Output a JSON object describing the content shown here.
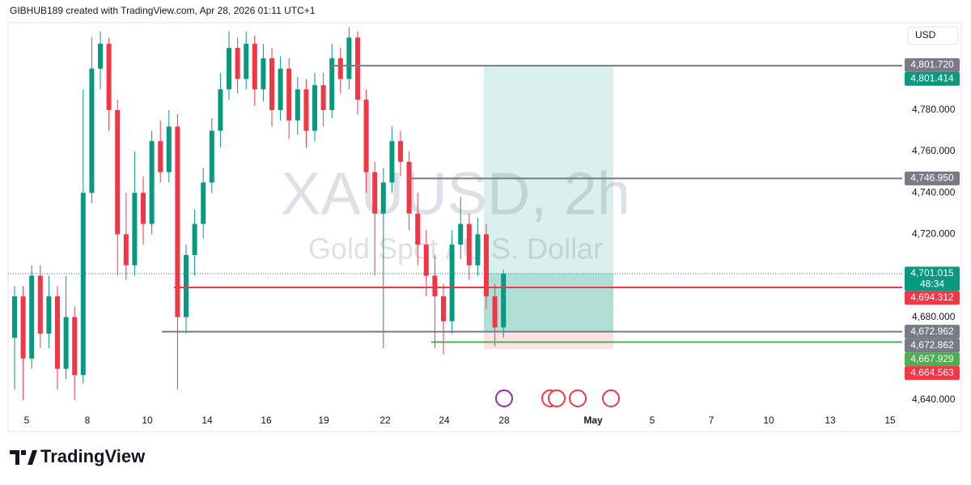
{
  "chart_data": {
    "type": "candlestick",
    "header": "GIBHUB189 created with TradingView.com, Apr 28, 2026 01:11 UTC+1",
    "watermark_symbol": "XAUUSD, 2h",
    "watermark_name": "Gold Spot / U.S. Dollar",
    "currency": "USD",
    "brand": "TradingView",
    "up_color": "#089981",
    "down_color": "#f23645",
    "ylim": [
      4633.7,
      4822.2
    ],
    "yticks": [
      {
        "value": 4640,
        "label": "4,640.000"
      },
      {
        "value": 4660,
        "label": "4,660.000"
      },
      {
        "value": 4680,
        "label": "4,680.000"
      },
      {
        "value": 4700,
        "label": "4,700.000"
      },
      {
        "value": 4720,
        "label": "4,720.000"
      },
      {
        "value": 4740,
        "label": "4,740.000"
      },
      {
        "value": 4760,
        "label": "4,760.000"
      },
      {
        "value": 4780,
        "label": "4,780.000"
      }
    ],
    "x_labels": [
      "5",
      "8",
      "10",
      "14",
      "16",
      "19",
      "22",
      "24",
      "28",
      "May",
      "5",
      "7",
      "10",
      "13",
      "15"
    ],
    "candles": [
      [
        4670,
        4695,
        4645,
        4690
      ],
      [
        4690,
        4695,
        4640,
        4660
      ],
      [
        4660,
        4705,
        4655,
        4700
      ],
      [
        4700,
        4705,
        4665,
        4672
      ],
      [
        4672,
        4700,
        4665,
        4690
      ],
      [
        4690,
        4695,
        4645,
        4655
      ],
      [
        4655,
        4700,
        4650,
        4680
      ],
      [
        4680,
        4685,
        4640,
        4652
      ],
      [
        4652,
        4790,
        4648,
        4740
      ],
      [
        4740,
        4815,
        4735,
        4800
      ],
      [
        4800,
        4818,
        4790,
        4812
      ],
      [
        4812,
        4815,
        4770,
        4780
      ],
      [
        4780,
        4785,
        4700,
        4720
      ],
      [
        4720,
        4740,
        4698,
        4705
      ],
      [
        4705,
        4760,
        4700,
        4740
      ],
      [
        4740,
        4748,
        4715,
        4725
      ],
      [
        4725,
        4770,
        4720,
        4765
      ],
      [
        4765,
        4775,
        4745,
        4750
      ],
      [
        4750,
        4780,
        4745,
        4772
      ],
      [
        4772,
        4778,
        4645,
        4680
      ],
      [
        4680,
        4715,
        4672,
        4710
      ],
      [
        4710,
        4732,
        4700,
        4725
      ],
      [
        4725,
        4752,
        4718,
        4745
      ],
      [
        4745,
        4776,
        4740,
        4770
      ],
      [
        4770,
        4798,
        4762,
        4790
      ],
      [
        4790,
        4818,
        4785,
        4810
      ],
      [
        4810,
        4815,
        4788,
        4795
      ],
      [
        4795,
        4818,
        4790,
        4812
      ],
      [
        4812,
        4816,
        4782,
        4790
      ],
      [
        4790,
        4812,
        4784,
        4805
      ],
      [
        4805,
        4810,
        4772,
        4780
      ],
      [
        4780,
        4806,
        4775,
        4800
      ],
      [
        4800,
        4805,
        4766,
        4775
      ],
      [
        4775,
        4796,
        4768,
        4790
      ],
      [
        4790,
        4795,
        4762,
        4770
      ],
      [
        4770,
        4798,
        4765,
        4792
      ],
      [
        4792,
        4798,
        4772,
        4780
      ],
      [
        4780,
        4812,
        4776,
        4805
      ],
      [
        4805,
        4810,
        4788,
        4795
      ],
      [
        4795,
        4820,
        4790,
        4815
      ],
      [
        4815,
        4818,
        4778,
        4785
      ],
      [
        4785,
        4790,
        4740,
        4750
      ],
      [
        4750,
        4755,
        4700,
        4730
      ],
      [
        4730,
        4752,
        4665,
        4745
      ],
      [
        4745,
        4772,
        4740,
        4765
      ],
      [
        4765,
        4770,
        4748,
        4755
      ],
      [
        4755,
        4760,
        4722,
        4730
      ],
      [
        4730,
        4740,
        4705,
        4715
      ],
      [
        4715,
        4722,
        4690,
        4700
      ],
      [
        4700,
        4710,
        4665,
        4690
      ],
      [
        4690,
        4696,
        4662,
        4678
      ],
      [
        4678,
        4722,
        4672,
        4715
      ],
      [
        4715,
        4738,
        4708,
        4725
      ],
      [
        4725,
        4730,
        4698,
        4705
      ],
      [
        4705,
        4728,
        4700,
        4720
      ],
      [
        4720,
        4725,
        4684,
        4690
      ],
      [
        4690,
        4696,
        4666,
        4675
      ],
      [
        4675,
        4703,
        4670,
        4701
      ]
    ],
    "levels": [
      {
        "value": 4801.414,
        "color": "#787b86"
      },
      {
        "value": 4746.95,
        "color": "#787b86"
      },
      {
        "value": 4694.312,
        "color": "#f23645"
      },
      {
        "value": 4672.962,
        "color": "#787b86"
      },
      {
        "value": 4667.929,
        "color": "#4caf50"
      }
    ],
    "current_price": 4701.015,
    "position": {
      "target": 4801.414,
      "entry": 4672.962,
      "stop": 4664.563
    },
    "price_labels": [
      {
        "value": 4801.72,
        "label": "4,801.720",
        "color": "#787b86"
      },
      {
        "value": 4801.414,
        "label": "4,801.414",
        "color": "#089981"
      },
      {
        "value": 4746.95,
        "label": "4,746.950",
        "color": "#787b86"
      },
      {
        "value": 4701.015,
        "label": "4,701.015",
        "color": "#089981",
        "timer": "48:34"
      },
      {
        "value": 4694.312,
        "label": "4,694.312",
        "color": "#f23645"
      },
      {
        "value": 4672.962,
        "label": "4,672.962",
        "color": "#787b86"
      },
      {
        "value": 4672.862,
        "label": "4,672.862",
        "color": "#787b86"
      },
      {
        "value": 4667.929,
        "label": "4,667.929",
        "color": "#4caf50"
      },
      {
        "value": 4664.563,
        "label": "4,664.563",
        "color": "#f23645"
      }
    ]
  }
}
